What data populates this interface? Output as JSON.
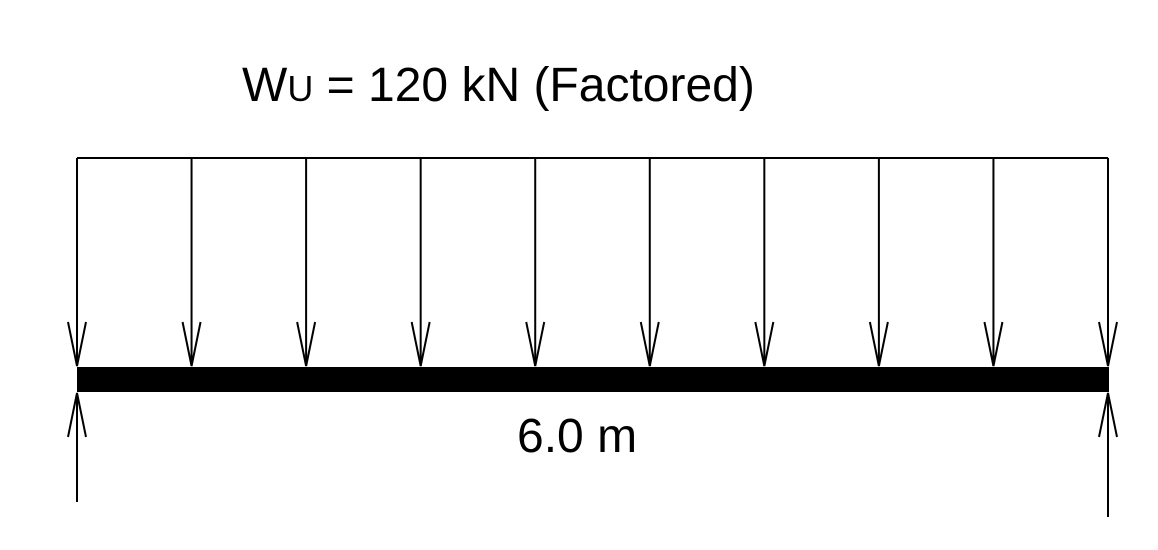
{
  "diagram": {
    "load_prefix": "W",
    "load_subscript": "U",
    "load_suffix": " = 120 kN (Factored)",
    "span_label": "6.0 m",
    "load_arrow_count": 10,
    "support_arrow_count": 2
  },
  "colors": {
    "line": "#000000",
    "beam": "#000000",
    "background": "#ffffff"
  },
  "icons": {
    "load_arrow": "down-arrow-icon",
    "reaction_arrow": "up-arrow-icon"
  }
}
